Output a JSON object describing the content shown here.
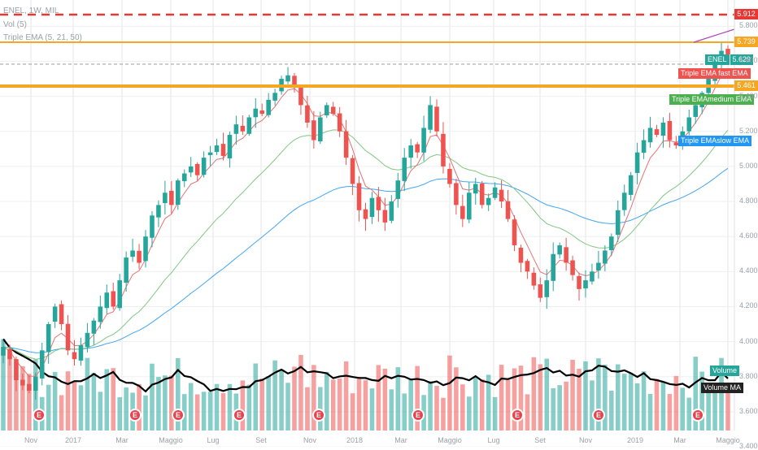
{
  "legend": {
    "symbol": "ENEL, 1W, MIL",
    "volume": "Vol (5)",
    "tema": "Triple EMA (5, 21, 50)"
  },
  "levels": {
    "red_dashed": "5.912",
    "orange_upper": "5.739",
    "orange_lower": "5.461"
  },
  "price_tag": {
    "label": "ENEL",
    "value": "5.629"
  },
  "y_ticks": [
    "5.800",
    "5.600",
    "5.400",
    "5.200",
    "5.000",
    "4.800",
    "4.600",
    "4.400",
    "4.200",
    "4.000",
    "3.800",
    "3.600",
    "3.400"
  ],
  "x_ticks": [
    "Nov",
    "2017",
    "Mar",
    "Maggio",
    "Lug",
    "Set",
    "Nov",
    "2018",
    "Mar",
    "Maggio",
    "Lug",
    "Set",
    "Nov",
    "2019",
    "Mar",
    "Maggio"
  ],
  "earnings_marker": "E",
  "indicator_labels": {
    "fast": "Triple EMA fast EMA",
    "medium": "Triple EMAmedium EMA",
    "slow": "Triple EMAslow EMA",
    "volume": "Volume",
    "volume_ma": "Volume MA"
  },
  "colors": {
    "up": "#26a69a",
    "down": "#ef5350",
    "fast_ema": "#e57373",
    "medium_ema": "#81c784",
    "slow_ema": "#42a5f5",
    "orange_level": "#f5a623",
    "red_level": "#e53935",
    "volume_ma": "#000000"
  },
  "chart_data": {
    "type": "candlestick",
    "timeframe": "1W",
    "y_scale": {
      "min": 3.4,
      "max": 5.95
    },
    "levels": [
      5.912,
      5.739,
      5.461
    ],
    "last_price": 5.629,
    "closes": [
      3.97,
      3.9,
      3.78,
      3.75,
      3.72,
      3.8,
      3.95,
      4.1,
      4.2,
      4.1,
      3.95,
      3.9,
      3.98,
      4.05,
      4.12,
      4.2,
      4.28,
      4.2,
      4.35,
      4.48,
      4.52,
      4.45,
      4.6,
      4.72,
      4.78,
      4.85,
      4.78,
      4.92,
      4.96,
      5.0,
      4.95,
      5.05,
      5.08,
      5.12,
      5.06,
      5.18,
      5.24,
      5.2,
      5.28,
      5.33,
      5.3,
      5.38,
      5.42,
      5.5,
      5.52,
      5.46,
      5.35,
      5.25,
      5.15,
      5.28,
      5.35,
      5.3,
      5.2,
      5.05,
      4.9,
      4.75,
      4.7,
      4.82,
      4.75,
      4.68,
      4.8,
      4.92,
      5.05,
      5.12,
      5.08,
      5.22,
      5.35,
      5.2,
      5.0,
      4.9,
      4.78,
      4.7,
      4.85,
      4.9,
      4.78,
      4.82,
      4.88,
      4.8,
      4.7,
      4.55,
      4.45,
      4.4,
      4.32,
      4.25,
      4.35,
      4.5,
      4.55,
      4.45,
      4.38,
      4.3,
      4.35,
      4.4,
      4.45,
      4.52,
      4.6,
      4.75,
      4.85,
      4.95,
      5.08,
      5.15,
      5.22,
      5.18,
      5.25,
      5.15,
      5.12,
      5.2,
      5.28,
      5.35,
      5.42,
      5.5,
      5.6,
      5.66,
      5.63
    ],
    "volume_scale": {
      "max": 1.0
    },
    "earnings_x_index": [
      7,
      25,
      37,
      54,
      71,
      91,
      106,
      116,
      134,
      152,
      161,
      175,
      202
    ]
  }
}
